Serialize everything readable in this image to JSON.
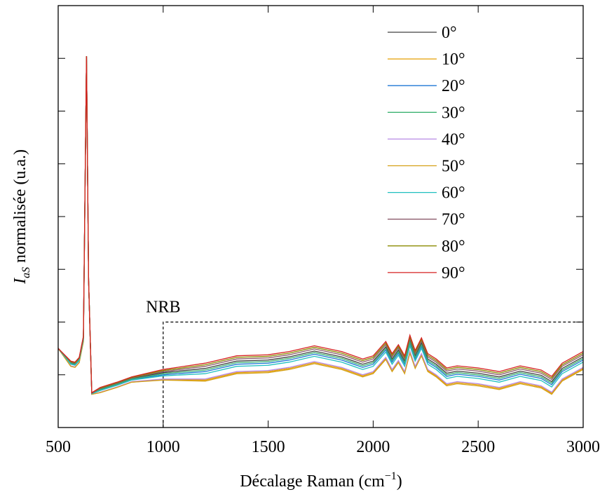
{
  "chart_data": {
    "type": "line",
    "xlabel": [
      "Décalage Raman (cm",
      "−1",
      ")"
    ],
    "ylabel": [
      "I",
      "aS",
      " normalisée (u.a.)"
    ],
    "x": [
      500,
      560,
      580,
      600,
      620,
      635,
      645,
      660,
      700,
      780,
      850,
      1000,
      1200,
      1350,
      1500,
      1600,
      1720,
      1850,
      1950,
      2000,
      2060,
      2090,
      2120,
      2150,
      2175,
      2200,
      2230,
      2260,
      2300,
      2350,
      2400,
      2500,
      2600,
      2700,
      2800,
      2850,
      2900,
      3000
    ],
    "xlim": [
      500,
      3000
    ],
    "xticks": [
      500,
      1000,
      1500,
      2000,
      2500,
      3000
    ],
    "ylim": [
      0,
      8
    ],
    "yticks": [
      1,
      2,
      3,
      4,
      5,
      6,
      7
    ],
    "legend": "upper right",
    "annotations": [
      {
        "text": "NRB",
        "x": 1000,
        "y": 2
      }
    ],
    "series": [
      {
        "name": "0°",
        "color": "#404040",
        "values": [
          1.5,
          1.23,
          1.21,
          1.3,
          1.7,
          7.04,
          2.79,
          0.65,
          0.73,
          0.83,
          0.93,
          1.04,
          1.12,
          1.26,
          1.28,
          1.34,
          1.45,
          1.34,
          1.2,
          1.26,
          1.53,
          1.3,
          1.47,
          1.26,
          1.65,
          1.36,
          1.6,
          1.3,
          1.2,
          1.03,
          1.07,
          1.03,
          0.96,
          1.07,
          0.99,
          0.87,
          1.12,
          1.34
        ]
      },
      {
        "name": "10°",
        "color": "#e69f00",
        "values": [
          1.5,
          1.16,
          1.14,
          1.23,
          1.63,
          7.04,
          2.79,
          0.63,
          0.66,
          0.76,
          0.86,
          0.91,
          0.9,
          1.04,
          1.06,
          1.12,
          1.23,
          1.12,
          0.98,
          1.04,
          1.31,
          1.08,
          1.25,
          1.04,
          1.43,
          1.14,
          1.38,
          1.08,
          0.98,
          0.81,
          0.85,
          0.81,
          0.74,
          0.85,
          0.77,
          0.65,
          0.9,
          1.12
        ]
      },
      {
        "name": "20°",
        "color": "#1f77d4",
        "values": [
          1.5,
          1.21,
          1.19,
          1.28,
          1.68,
          7.04,
          2.79,
          0.64,
          0.71,
          0.81,
          0.91,
          1.0,
          1.06,
          1.2,
          1.22,
          1.28,
          1.39,
          1.28,
          1.14,
          1.2,
          1.47,
          1.24,
          1.41,
          1.2,
          1.59,
          1.3,
          1.54,
          1.24,
          1.14,
          0.97,
          1.01,
          0.97,
          0.9,
          1.01,
          0.93,
          0.81,
          1.06,
          1.28
        ]
      },
      {
        "name": "30°",
        "color": "#3cb371",
        "values": [
          1.5,
          1.22,
          1.2,
          1.29,
          1.69,
          7.04,
          2.79,
          0.65,
          0.72,
          0.82,
          0.92,
          1.02,
          1.09,
          1.23,
          1.25,
          1.31,
          1.42,
          1.31,
          1.17,
          1.23,
          1.5,
          1.27,
          1.44,
          1.23,
          1.62,
          1.33,
          1.57,
          1.27,
          1.17,
          1.0,
          1.04,
          1.0,
          0.93,
          1.04,
          0.96,
          0.84,
          1.09,
          1.31
        ]
      },
      {
        "name": "40°",
        "color": "#b88ae6",
        "values": [
          1.5,
          1.17,
          1.15,
          1.24,
          1.64,
          7.04,
          2.79,
          0.63,
          0.67,
          0.77,
          0.87,
          0.92,
          0.92,
          1.06,
          1.08,
          1.14,
          1.25,
          1.14,
          1.0,
          1.06,
          1.33,
          1.1,
          1.27,
          1.06,
          1.45,
          1.16,
          1.4,
          1.1,
          1.0,
          0.83,
          0.87,
          0.83,
          0.76,
          0.87,
          0.79,
          0.67,
          0.92,
          1.14
        ]
      },
      {
        "name": "50°",
        "color": "#d4a017",
        "values": [
          1.5,
          1.16,
          1.14,
          1.23,
          1.63,
          7.04,
          2.79,
          0.63,
          0.66,
          0.76,
          0.86,
          0.9,
          0.88,
          1.02,
          1.04,
          1.1,
          1.21,
          1.1,
          0.96,
          1.02,
          1.29,
          1.06,
          1.23,
          1.02,
          1.41,
          1.12,
          1.36,
          1.06,
          0.96,
          0.79,
          0.83,
          0.79,
          0.72,
          0.83,
          0.75,
          0.63,
          0.88,
          1.1
        ]
      },
      {
        "name": "60°",
        "color": "#20c0c0",
        "values": [
          1.5,
          1.2,
          1.18,
          1.27,
          1.67,
          7.04,
          2.79,
          0.64,
          0.7,
          0.8,
          0.9,
          0.98,
          1.02,
          1.16,
          1.18,
          1.24,
          1.35,
          1.24,
          1.1,
          1.16,
          1.43,
          1.2,
          1.37,
          1.16,
          1.55,
          1.26,
          1.5,
          1.2,
          1.1,
          0.93,
          0.97,
          0.93,
          0.86,
          0.97,
          0.89,
          0.77,
          1.02,
          1.24
        ]
      },
      {
        "name": "70°",
        "color": "#8b5a6b",
        "values": [
          1.5,
          1.24,
          1.22,
          1.31,
          1.71,
          7.04,
          2.79,
          0.65,
          0.74,
          0.84,
          0.94,
          1.06,
          1.16,
          1.3,
          1.32,
          1.38,
          1.49,
          1.38,
          1.24,
          1.3,
          1.57,
          1.34,
          1.51,
          1.3,
          1.69,
          1.4,
          1.64,
          1.34,
          1.24,
          1.07,
          1.11,
          1.07,
          1.0,
          1.11,
          1.03,
          0.91,
          1.16,
          1.38
        ]
      },
      {
        "name": "80°",
        "color": "#8b8b00",
        "values": [
          1.5,
          1.25,
          1.23,
          1.32,
          1.72,
          7.04,
          2.79,
          0.66,
          0.75,
          0.85,
          0.95,
          1.08,
          1.19,
          1.33,
          1.35,
          1.41,
          1.52,
          1.41,
          1.27,
          1.33,
          1.6,
          1.37,
          1.54,
          1.33,
          1.72,
          1.43,
          1.67,
          1.37,
          1.27,
          1.1,
          1.14,
          1.1,
          1.03,
          1.14,
          1.06,
          0.94,
          1.19,
          1.41
        ]
      },
      {
        "name": "90°",
        "color": "#d62020",
        "values": [
          1.5,
          1.26,
          1.24,
          1.33,
          1.73,
          7.04,
          2.79,
          0.66,
          0.76,
          0.86,
          0.96,
          1.1,
          1.22,
          1.36,
          1.38,
          1.44,
          1.55,
          1.44,
          1.3,
          1.36,
          1.63,
          1.4,
          1.57,
          1.36,
          1.75,
          1.46,
          1.7,
          1.4,
          1.3,
          1.13,
          1.17,
          1.13,
          1.06,
          1.17,
          1.09,
          0.97,
          1.22,
          1.44
        ]
      }
    ]
  }
}
